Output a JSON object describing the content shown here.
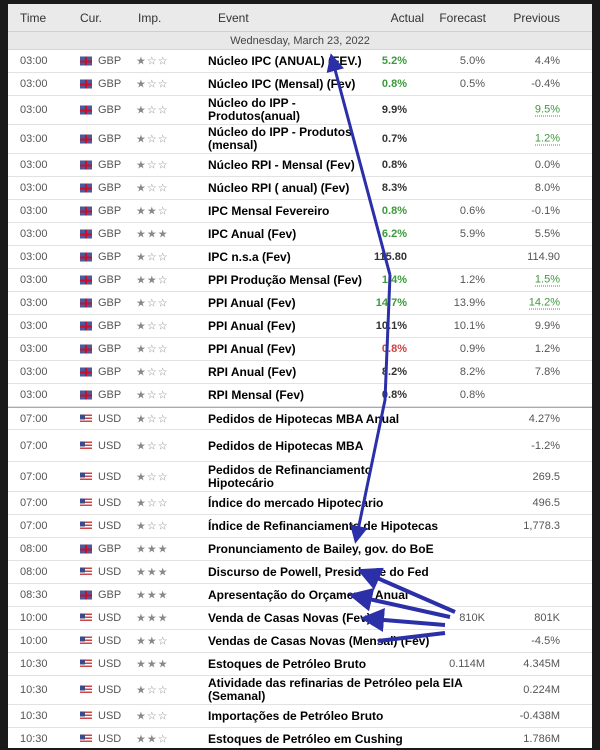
{
  "header": {
    "time": "Time",
    "cur": "Cur.",
    "imp": "Imp.",
    "event": "Event",
    "actual": "Actual",
    "forecast": "Forecast",
    "previous": "Previous"
  },
  "date": "Wednesday, March 23, 2022",
  "colors": {
    "green": "#3c9a3c",
    "red": "#d04040",
    "arrow": "#2b2fa8"
  },
  "rows": [
    {
      "time": "03:00",
      "cur": "GBP",
      "stars": 1,
      "event": "Núcleo IPC (ANUAL) (FEV.)",
      "actual": "5.2%",
      "ac": "green",
      "forecast": "5.0%",
      "previous": "4.4%"
    },
    {
      "time": "03:00",
      "cur": "GBP",
      "stars": 1,
      "event": "Núcleo IPC (Mensal) (Fev)",
      "actual": "0.8%",
      "ac": "green",
      "forecast": "0.5%",
      "previous": "-0.4%"
    },
    {
      "time": "03:00",
      "cur": "GBP",
      "stars": 1,
      "event": "Núcleo do IPP - Produtos(anual)",
      "actual": "9.9%",
      "ac": "black",
      "forecast": "",
      "previous": "9.5%",
      "pu": true
    },
    {
      "time": "03:00",
      "cur": "GBP",
      "stars": 1,
      "event": "Núcleo do IPP - Produtos (mensal)",
      "actual": "0.7%",
      "ac": "black",
      "forecast": "",
      "previous": "1.2%",
      "pu": true
    },
    {
      "time": "03:00",
      "cur": "GBP",
      "stars": 1,
      "event": "Núcleo RPI - Mensal (Fev)",
      "actual": "0.8%",
      "ac": "black",
      "forecast": "",
      "previous": "0.0%"
    },
    {
      "time": "03:00",
      "cur": "GBP",
      "stars": 1,
      "event": "Núcleo RPI ( anual) (Fev)",
      "actual": "8.3%",
      "ac": "black",
      "forecast": "",
      "previous": "8.0%"
    },
    {
      "time": "03:00",
      "cur": "GBP",
      "stars": 2,
      "event": "IPC Mensal Fevereiro",
      "actual": "0.8%",
      "ac": "green",
      "forecast": "0.6%",
      "previous": "-0.1%"
    },
    {
      "time": "03:00",
      "cur": "GBP",
      "stars": 3,
      "event": "IPC Anual (Fev)",
      "actual": "6.2%",
      "ac": "green",
      "forecast": "5.9%",
      "previous": "5.5%"
    },
    {
      "time": "03:00",
      "cur": "GBP",
      "stars": 1,
      "event": "IPC n.s.a (Fev)",
      "actual": "115.80",
      "ac": "black",
      "forecast": "",
      "previous": "114.90"
    },
    {
      "time": "03:00",
      "cur": "GBP",
      "stars": 2,
      "event": "PPI Produção Mensal (Fev)",
      "actual": "1.4%",
      "ac": "green",
      "forecast": "1.2%",
      "previous": "1.5%",
      "pu": true
    },
    {
      "time": "03:00",
      "cur": "GBP",
      "stars": 1,
      "event": "PPI  Anual (Fev)",
      "actual": "14.7%",
      "ac": "green",
      "forecast": "13.9%",
      "previous": "14.2%",
      "pu": true
    },
    {
      "time": "03:00",
      "cur": "GBP",
      "stars": 1,
      "event": "PPI Anual (Fev)",
      "actual": "10.1%",
      "ac": "black",
      "forecast": "10.1%",
      "previous": "9.9%"
    },
    {
      "time": "03:00",
      "cur": "GBP",
      "stars": 1,
      "event": "PPI Anual (Fev)",
      "actual": "0.8%",
      "ac": "red",
      "forecast": "0.9%",
      "previous": "1.2%"
    },
    {
      "time": "03:00",
      "cur": "GBP",
      "stars": 1,
      "event": "RPI Anual (Fev)",
      "actual": "8.2%",
      "ac": "black",
      "forecast": "8.2%",
      "previous": "7.8%"
    },
    {
      "time": "03:00",
      "cur": "GBP",
      "stars": 1,
      "event": "RPI Mensal (Fev)",
      "actual": "0.8%",
      "ac": "black",
      "forecast": "0.8%",
      "previous": ""
    },
    {
      "time": "07:00",
      "cur": "USD",
      "stars": 1,
      "event": "Pedidos de Hipotecas MBA Anual",
      "actual": "",
      "ac": "black",
      "forecast": "",
      "previous": "4.27%"
    },
    {
      "time": "07:00",
      "cur": "USD",
      "stars": 1,
      "event": "Pedidos de Hipotecas MBA",
      "actual": "",
      "ac": "black",
      "forecast": "",
      "previous": "-1.2%"
    },
    {
      "time": "07:00",
      "cur": "USD",
      "stars": 1,
      "event": "Pedidos de Refinanciamento Hipotecário",
      "actual": "",
      "ac": "black",
      "forecast": "",
      "previous": "269.5"
    },
    {
      "time": "07:00",
      "cur": "USD",
      "stars": 1,
      "event": "Índice do mercado Hipotecário",
      "actual": "",
      "ac": "black",
      "forecast": "",
      "previous": "496.5"
    },
    {
      "time": "07:00",
      "cur": "USD",
      "stars": 1,
      "event": "Índice de Refinanciamento de Hipotecas",
      "actual": "",
      "ac": "black",
      "forecast": "",
      "previous": "1,778.3"
    },
    {
      "time": "08:00",
      "cur": "GBP",
      "stars": 3,
      "event": "Pronunciamento de Bailey, gov. do BoE",
      "actual": "",
      "ac": "black",
      "forecast": "",
      "previous": ""
    },
    {
      "time": "08:00",
      "cur": "USD",
      "stars": 3,
      "event": "Discurso de Powell, Presidente do Fed",
      "actual": "",
      "ac": "black",
      "forecast": "",
      "previous": ""
    },
    {
      "time": "08:30",
      "cur": "GBP",
      "stars": 3,
      "event": "Apresentação do Orçamento Anual",
      "actual": "",
      "ac": "black",
      "forecast": "",
      "previous": ""
    },
    {
      "time": "10:00",
      "cur": "USD",
      "stars": 3,
      "event": "Venda de Casas Novas (Fev)",
      "actual": "",
      "ac": "black",
      "forecast": "810K",
      "previous": "801K"
    },
    {
      "time": "10:00",
      "cur": "USD",
      "stars": 2,
      "event": "Vendas de Casas Novas (Mensal) (Fev)",
      "actual": "",
      "ac": "black",
      "forecast": "",
      "previous": "-4.5%"
    },
    {
      "time": "10:30",
      "cur": "USD",
      "stars": 3,
      "event": "Estoques de Petróleo Bruto",
      "actual": "",
      "ac": "black",
      "forecast": "0.114M",
      "previous": "4.345M"
    },
    {
      "time": "10:30",
      "cur": "USD",
      "stars": 1,
      "event": "Atividade das refinarias de Petróleo pela EIA (Semanal)",
      "actual": "",
      "ac": "black",
      "forecast": "",
      "previous": "0.224M"
    },
    {
      "time": "10:30",
      "cur": "USD",
      "stars": 1,
      "event": "Importações de Petróleo Bruto",
      "actual": "",
      "ac": "black",
      "forecast": "",
      "previous": "-0.438M"
    },
    {
      "time": "10:30",
      "cur": "USD",
      "stars": 2,
      "event": "Estoques de Petróleo em Cushing",
      "actual": "",
      "ac": "black",
      "forecast": "",
      "previous": "1.786M"
    }
  ]
}
